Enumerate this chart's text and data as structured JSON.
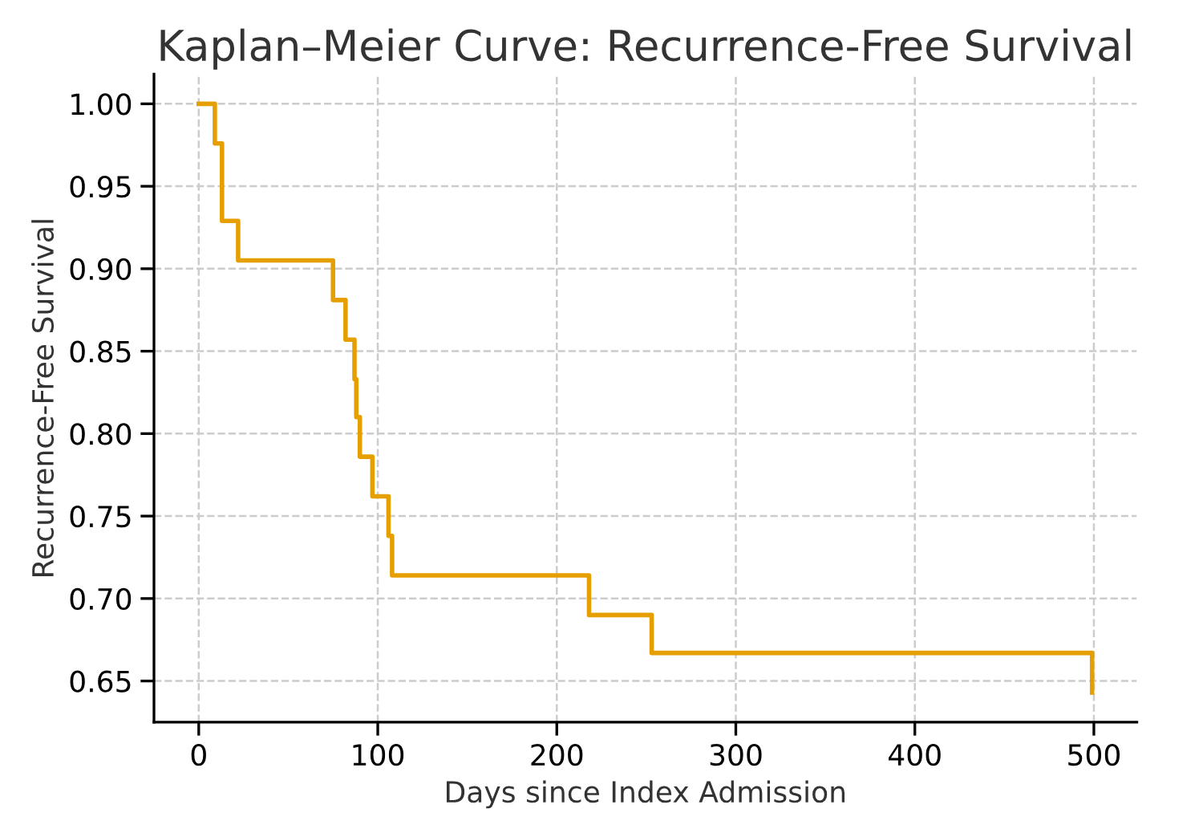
{
  "chart_data": {
    "type": "step",
    "title": "Kaplan–Meier Curve: Recurrence-Free Survival",
    "xlabel": "Days since Index Admission",
    "ylabel": "Recurrence-Free Survival",
    "x": [
      0,
      9,
      13,
      22,
      75,
      82,
      87,
      88,
      90,
      97,
      106,
      108,
      218,
      253,
      499
    ],
    "series": [
      {
        "color": "#e69f00",
        "values": [
          1.0,
          0.976,
          0.929,
          0.905,
          0.881,
          0.857,
          0.833,
          0.81,
          0.786,
          0.762,
          0.738,
          0.714,
          0.69,
          0.667,
          0.643
        ]
      }
    ],
    "xlim": [
      -25,
      524
    ],
    "xticks": [
      0,
      100,
      200,
      300,
      400,
      500
    ],
    "ylim": [
      0.625,
      1.018
    ],
    "yticks": [
      {
        "value": 0.65,
        "label": "0.65"
      },
      {
        "value": 0.7,
        "label": "0.70"
      },
      {
        "value": 0.75,
        "label": "0.75"
      },
      {
        "value": 0.8,
        "label": "0.80"
      },
      {
        "value": 0.85,
        "label": "0.85"
      },
      {
        "value": 0.9,
        "label": "0.90"
      },
      {
        "value": 0.95,
        "label": "0.95"
      },
      {
        "value": 1.0,
        "label": "1.00"
      }
    ],
    "grid": true,
    "line_style": "solid"
  }
}
